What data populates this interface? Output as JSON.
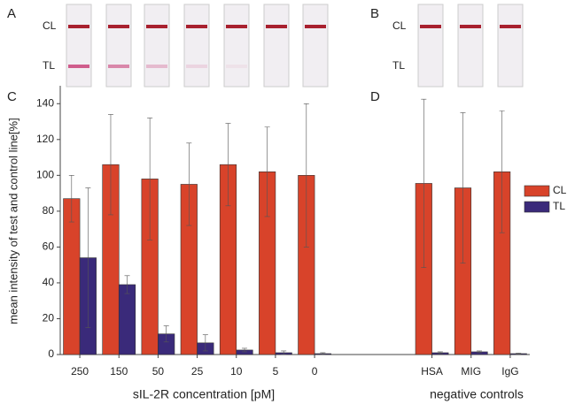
{
  "figure": {
    "panel_labels": [
      "A",
      "B",
      "C",
      "D"
    ],
    "strip_labels_a": [
      "CL",
      "TL"
    ],
    "strip_labels_b": [
      "CL",
      "TL"
    ]
  },
  "chart_data": {
    "type": "bar",
    "ylabel": "mean intensity of test and control line[%]",
    "x_group_labels": [
      "sIL-2R concentration [pM]",
      "negative controls"
    ],
    "categories": [
      "250",
      "150",
      "50",
      "25",
      "10",
      "5",
      "0",
      null,
      null,
      "HSA",
      "MIG",
      "IgG"
    ],
    "series": [
      {
        "name": "CL",
        "color": "#d8432a",
        "values": [
          87,
          106,
          98,
          95,
          106,
          102,
          100,
          null,
          null,
          95.5,
          93,
          102
        ],
        "errors": [
          13,
          28,
          34,
          23,
          23,
          25,
          40,
          null,
          null,
          47,
          42,
          34
        ]
      },
      {
        "name": "TL",
        "color": "#3a2a7a",
        "values": [
          54,
          39,
          11.5,
          6.5,
          2.5,
          1,
          0.5,
          null,
          null,
          1,
          1.5,
          0.5
        ],
        "errors": [
          39,
          5,
          4.5,
          4.5,
          1,
          1,
          0.5,
          null,
          null,
          0.5,
          0.5,
          0.3
        ]
      }
    ],
    "ylim": [
      0,
      150
    ],
    "yticks": [
      0,
      20,
      40,
      60,
      80,
      100,
      120,
      140
    ],
    "legend": "right",
    "grid": false
  }
}
